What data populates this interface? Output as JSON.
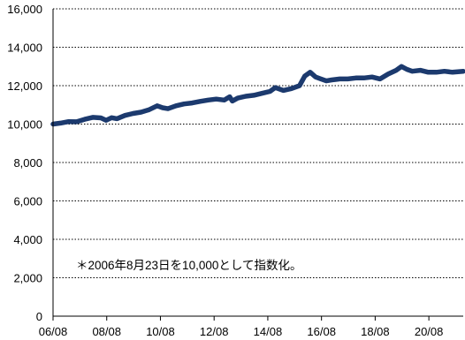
{
  "chart_data": {
    "type": "line",
    "title": "",
    "xlabel": "",
    "ylabel": "",
    "x_tick_labels": [
      "06/08",
      "08/08",
      "10/08",
      "12/08",
      "14/08",
      "16/08",
      "18/08",
      "20/08"
    ],
    "x_tick_years": [
      2006.62,
      2008.62,
      2010.62,
      2012.62,
      2014.62,
      2016.62,
      2018.62,
      2020.62
    ],
    "xlim": [
      2006.62,
      2021.9
    ],
    "y_ticks": [
      0,
      2000,
      4000,
      6000,
      8000,
      10000,
      12000,
      14000,
      16000
    ],
    "y_tick_labels": [
      "0",
      "2,000",
      "4,000",
      "6,000",
      "8,000",
      "10,000",
      "12,000",
      "14,000",
      "16,000"
    ],
    "ylim": [
      0,
      16000
    ],
    "grid": "horizontal-dotted",
    "series": [
      {
        "color": "#1c3a6e",
        "x": [
          2006.62,
          2006.9,
          2007.2,
          2007.5,
          2007.8,
          2008.1,
          2008.4,
          2008.6,
          2008.8,
          2009.0,
          2009.3,
          2009.6,
          2009.9,
          2010.2,
          2010.5,
          2010.7,
          2010.9,
          2011.2,
          2011.5,
          2011.8,
          2012.1,
          2012.4,
          2012.7,
          2013.0,
          2013.2,
          2013.3,
          2013.5,
          2013.8,
          2014.1,
          2014.4,
          2014.7,
          2014.9,
          2015.2,
          2015.5,
          2015.8,
          2016.0,
          2016.2,
          2016.4,
          2016.6,
          2016.8,
          2017.0,
          2017.3,
          2017.6,
          2017.9,
          2018.2,
          2018.5,
          2018.8,
          2019.1,
          2019.4,
          2019.6,
          2019.8,
          2020.0,
          2020.3,
          2020.6,
          2020.9,
          2021.2,
          2021.5,
          2021.9
        ],
        "y": [
          10000,
          10050,
          10130,
          10120,
          10250,
          10350,
          10320,
          10200,
          10330,
          10280,
          10450,
          10550,
          10620,
          10750,
          10950,
          10850,
          10800,
          10950,
          11050,
          11100,
          11180,
          11250,
          11300,
          11250,
          11420,
          11200,
          11350,
          11450,
          11500,
          11600,
          11700,
          11900,
          11750,
          11850,
          12000,
          12500,
          12700,
          12450,
          12350,
          12250,
          12300,
          12350,
          12350,
          12400,
          12400,
          12450,
          12350,
          12600,
          12800,
          13000,
          12850,
          12750,
          12800,
          12700,
          12700,
          12750,
          12700,
          12750
        ]
      }
    ],
    "annotation": "＊2006年8月23日を10,000として指数化。"
  }
}
